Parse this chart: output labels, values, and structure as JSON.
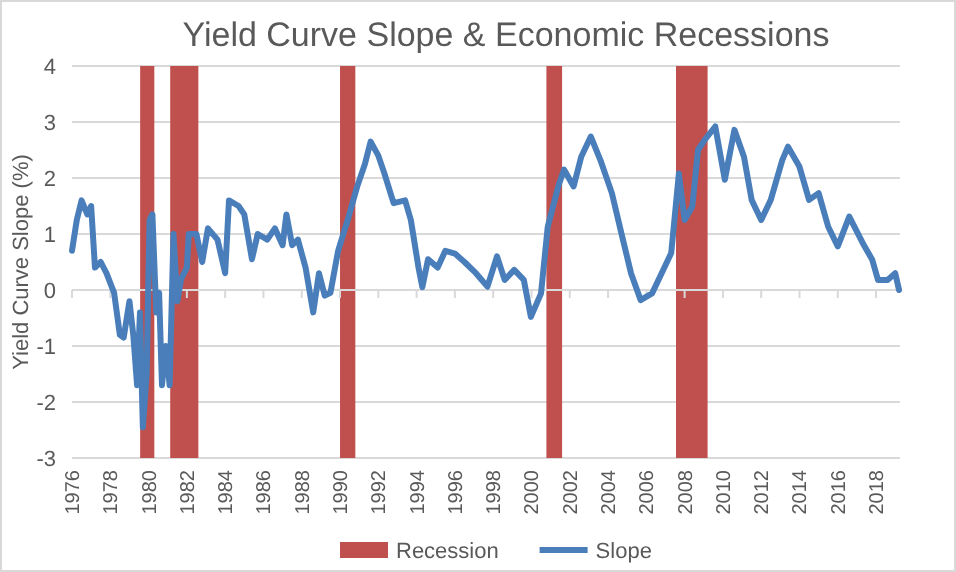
{
  "chart_data": {
    "type": "line",
    "title": "Yield Curve Slope & Economic Recessions",
    "ylabel": "Yield Curve Slope (%)",
    "xlim": [
      1976,
      2019.25
    ],
    "xticks": [
      1976,
      1978,
      1980,
      1982,
      1984,
      1986,
      1988,
      1990,
      1992,
      1994,
      1996,
      1998,
      2000,
      2002,
      2004,
      2006,
      2008,
      2010,
      2012,
      2014,
      2016,
      2018
    ],
    "ylim": [
      -3,
      4
    ],
    "yticks": [
      -3,
      -2,
      -1,
      0,
      1,
      2,
      3,
      4
    ],
    "grid": "y",
    "legend": "bottom",
    "bands": [
      {
        "axis": "x",
        "from": 1979.56,
        "to": 1980.3,
        "label": "Recession",
        "color": "#c0504d"
      },
      {
        "axis": "x",
        "from": 1981.13,
        "to": 1982.6,
        "color": "#c0504d"
      },
      {
        "axis": "x",
        "from": 1990.0,
        "to": 1990.8,
        "color": "#c0504d"
      },
      {
        "axis": "x",
        "from": 2000.78,
        "to": 2001.6,
        "color": "#c0504d"
      },
      {
        "axis": "x",
        "from": 2007.55,
        "to": 2009.2,
        "color": "#c0504d"
      }
    ],
    "series": [
      {
        "name": "Slope",
        "color": "#4a7ebb",
        "x": [
          1976.0,
          1976.25,
          1976.5,
          1976.8,
          1977.0,
          1977.2,
          1977.5,
          1977.8,
          1978.2,
          1978.5,
          1978.7,
          1979.0,
          1979.2,
          1979.4,
          1979.55,
          1979.7,
          1979.9,
          1980.05,
          1980.2,
          1980.4,
          1980.55,
          1980.7,
          1980.9,
          1981.1,
          1981.3,
          1981.5,
          1981.7,
          1982.0,
          1982.1,
          1982.5,
          1982.8,
          1983.1,
          1983.6,
          1984.0,
          1984.2,
          1984.7,
          1985.0,
          1985.4,
          1985.7,
          1986.2,
          1986.6,
          1987.0,
          1987.2,
          1987.5,
          1987.8,
          1988.2,
          1988.6,
          1988.9,
          1989.2,
          1989.5,
          1989.9,
          1990.4,
          1990.9,
          1991.3,
          1991.6,
          1992.0,
          1992.3,
          1992.8,
          1993.4,
          1993.7,
          1994.1,
          1994.3,
          1994.6,
          1995.1,
          1995.5,
          1996.0,
          1996.5,
          1997.1,
          1997.7,
          1998.2,
          1998.6,
          1999.1,
          1999.6,
          1999.97,
          2000.5,
          2000.85,
          2001.4,
          2001.7,
          2002.2,
          2002.6,
          2003.1,
          2003.6,
          2004.2,
          2004.7,
          2005.2,
          2005.7,
          2006.3,
          2006.8,
          2007.3,
          2007.7,
          2008.0,
          2008.4,
          2008.7,
          2009.05,
          2009.6,
          2010.1,
          2010.6,
          2011.1,
          2011.5,
          2012.0,
          2012.5,
          2013.1,
          2013.4,
          2014.0,
          2014.5,
          2015.0,
          2015.5,
          2016.0,
          2016.6,
          2017.3,
          2017.8,
          2018.1,
          2018.6,
          2019.0,
          2019.2
        ],
        "values": [
          0.7,
          1.25,
          1.6,
          1.35,
          1.5,
          0.4,
          0.5,
          0.3,
          -0.05,
          -0.8,
          -0.85,
          -0.2,
          -0.8,
          -1.7,
          -0.4,
          -2.45,
          -1.5,
          1.25,
          1.35,
          -0.4,
          -0.05,
          -1.7,
          -1.0,
          -1.7,
          1.0,
          -0.2,
          0.2,
          0.4,
          1.0,
          1.0,
          0.5,
          1.1,
          0.9,
          0.3,
          1.6,
          1.5,
          1.35,
          0.55,
          1.0,
          0.9,
          1.1,
          0.8,
          1.35,
          0.8,
          0.9,
          0.4,
          -0.4,
          0.3,
          -0.1,
          -0.05,
          0.7,
          1.25,
          1.85,
          2.25,
          2.65,
          2.4,
          2.1,
          1.55,
          1.6,
          1.25,
          0.4,
          0.05,
          0.55,
          0.4,
          0.7,
          0.65,
          0.5,
          0.3,
          0.06,
          0.6,
          0.18,
          0.36,
          0.18,
          -0.48,
          -0.06,
          1.13,
          1.85,
          2.15,
          1.85,
          2.38,
          2.74,
          2.32,
          1.73,
          1.01,
          0.3,
          -0.18,
          -0.06,
          0.3,
          0.66,
          2.08,
          1.25,
          1.49,
          2.5,
          2.68,
          2.92,
          1.97,
          2.86,
          2.38,
          1.61,
          1.25,
          1.61,
          2.32,
          2.56,
          2.2,
          1.61,
          1.73,
          1.13,
          0.78,
          1.31,
          0.84,
          0.54,
          0.18,
          0.18,
          0.3,
          0.0
        ]
      }
    ]
  }
}
